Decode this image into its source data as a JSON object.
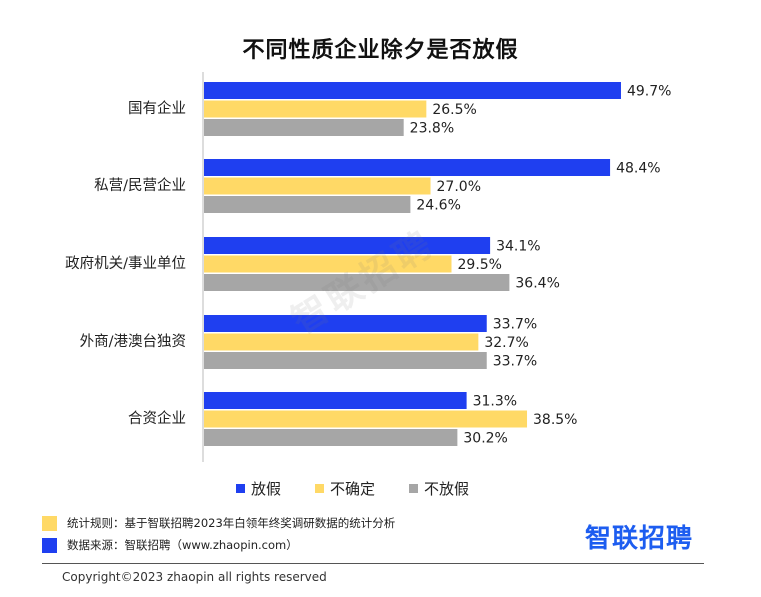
{
  "colors": {
    "放假": "#1f3ff0",
    "不确定": "#ffd966",
    "不放假": "#a6a6a6"
  },
  "chart_data": {
    "type": "bar",
    "orientation": "horizontal",
    "title": "不同性质企业除夕是否放假",
    "categories": [
      "国有企业",
      "私营/民营企业",
      "政府机关/事业单位",
      "外商/港澳台独资",
      "合资企业"
    ],
    "series": [
      {
        "name": "放假",
        "values": [
          49.7,
          48.4,
          34.1,
          33.7,
          31.3
        ]
      },
      {
        "name": "不确定",
        "values": [
          26.5,
          27.0,
          29.5,
          32.7,
          38.5
        ]
      },
      {
        "name": "不放假",
        "values": [
          23.8,
          24.6,
          36.4,
          33.7,
          30.2
        ]
      }
    ],
    "value_labels": [
      [
        "49.7%",
        "26.5%",
        "23.8%"
      ],
      [
        "48.4%",
        "27.0%",
        "24.6%"
      ],
      [
        "34.1%",
        "29.5%",
        "36.4%"
      ],
      [
        "33.7%",
        "32.7%",
        "33.7%"
      ],
      [
        "31.3%",
        "38.5%",
        "30.2%"
      ]
    ],
    "unit": "%",
    "legend_position": "bottom",
    "grid": false
  },
  "legend": {
    "items": [
      "放假",
      "不确定",
      "不放假"
    ]
  },
  "notes": {
    "rule": "统计规则：基于智联招聘2023年白领年终奖调研数据的统计分析",
    "source": "数据来源：智联招聘（www.zhaopin.com）"
  },
  "brand": {
    "name": "智联招聘"
  },
  "watermark": "智联招聘",
  "copyright": "Copyright©2023 zhaopin all rights reserved"
}
